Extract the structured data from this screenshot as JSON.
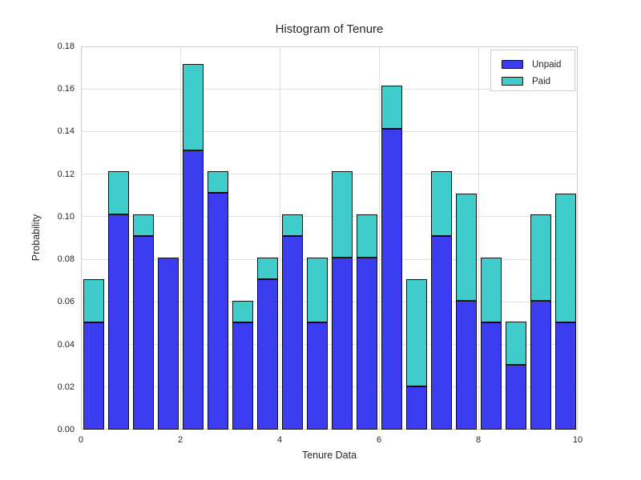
{
  "chart_data": {
    "type": "bar",
    "subtype": "stacked-histogram",
    "title": "Histogram of Tenure",
    "xlabel": "Tenure Data",
    "ylabel": "Probability",
    "xlim": [
      0,
      10
    ],
    "ylim": [
      0,
      0.18
    ],
    "x_ticks": [
      "0",
      "2",
      "4",
      "6",
      "8",
      "10"
    ],
    "y_ticks": [
      "0.00",
      "0.02",
      "0.04",
      "0.06",
      "0.08",
      "0.10",
      "0.12",
      "0.14",
      "0.16",
      "0.18"
    ],
    "grid": true,
    "legend_position": "upper right",
    "bin_width": 0.5,
    "bin_starts": [
      0,
      0.5,
      1,
      1.5,
      2,
      2.5,
      3,
      3.5,
      4,
      4.5,
      5,
      5.5,
      6,
      6.5,
      7,
      7.5,
      8,
      8.5,
      9,
      9.5
    ],
    "series": [
      {
        "name": "Unpaid",
        "color": "#3c3cf0",
        "values": [
          0.0505,
          0.101,
          0.0909,
          0.0808,
          0.1313,
          0.1111,
          0.0505,
          0.0707,
          0.0909,
          0.0505,
          0.0808,
          0.0808,
          0.1414,
          0.0202,
          0.0909,
          0.0606,
          0.0505,
          0.0303,
          0.0606,
          0.0505
        ]
      },
      {
        "name": "Paid",
        "color": "#40ccca",
        "values": [
          0.0202,
          0.0202,
          0.0101,
          0.0,
          0.0404,
          0.0101,
          0.0101,
          0.0101,
          0.0101,
          0.0303,
          0.0404,
          0.0202,
          0.0202,
          0.0505,
          0.0303,
          0.0505,
          0.0303,
          0.0202,
          0.0404,
          0.0606
        ]
      }
    ],
    "colors": {
      "bar_edge": "#111111",
      "gridline": "#e0e0e0",
      "spine": "#cccccc",
      "text": "#262626",
      "background": "#ffffff"
    }
  }
}
